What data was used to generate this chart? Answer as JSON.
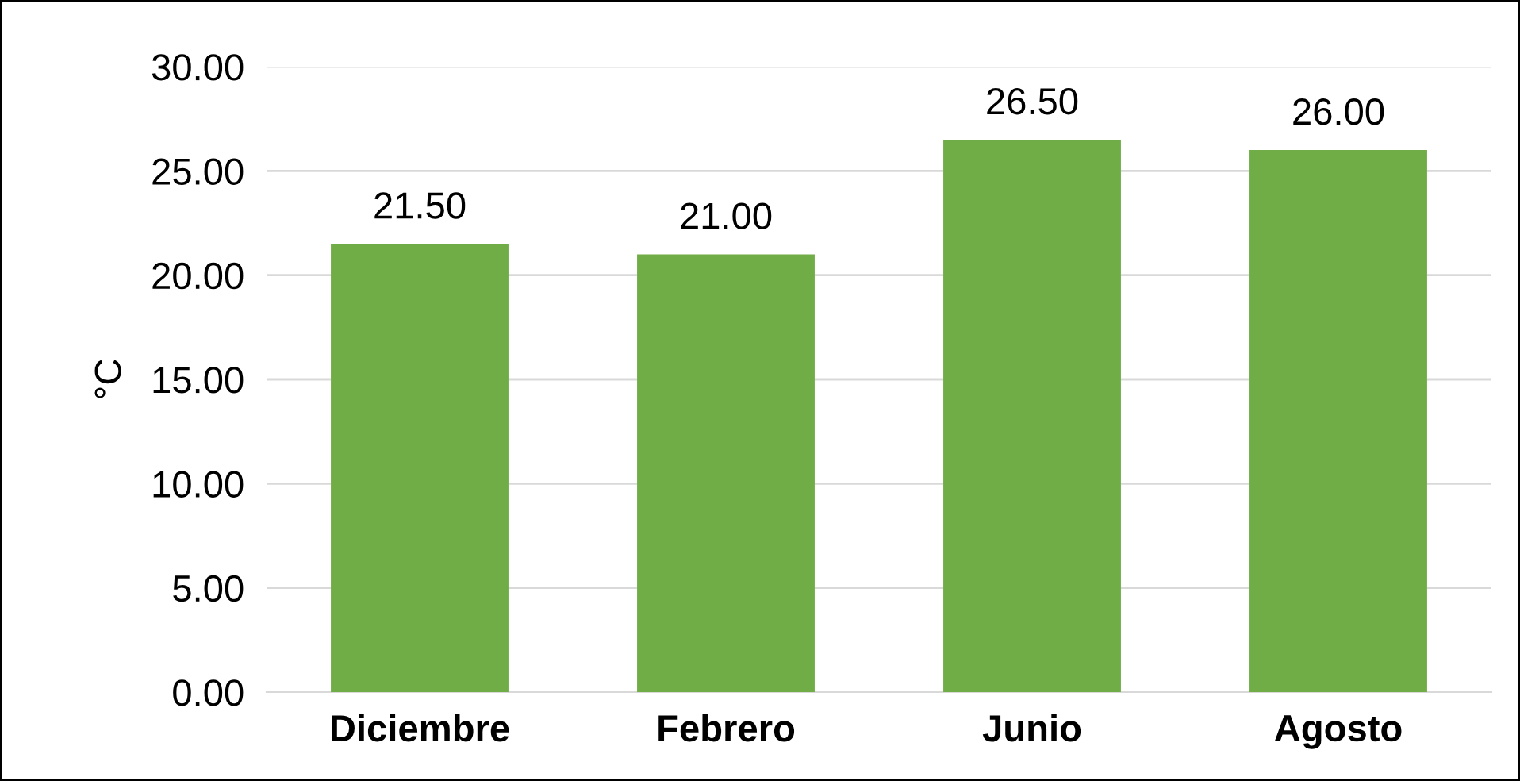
{
  "chart_data": {
    "type": "bar",
    "ylabel": "°C",
    "categories": [
      "Diciembre",
      "Febrero",
      "Junio",
      "Agosto"
    ],
    "values": [
      21.5,
      21.0,
      26.5,
      26.0
    ],
    "color": "#70ad47",
    "value_labels": [
      "21.50",
      "21.00",
      "26.50",
      "26.00"
    ],
    "ylim": [
      0,
      30
    ],
    "yticks": [
      {
        "value": 0,
        "label": "0.00"
      },
      {
        "value": 5,
        "label": "5.00"
      },
      {
        "value": 10,
        "label": "10.00"
      },
      {
        "value": 15,
        "label": "15.00"
      },
      {
        "value": 20,
        "label": "20.00"
      },
      {
        "value": 25,
        "label": "25.00"
      },
      {
        "value": 30,
        "label": "30.00"
      }
    ],
    "grid": "y"
  }
}
